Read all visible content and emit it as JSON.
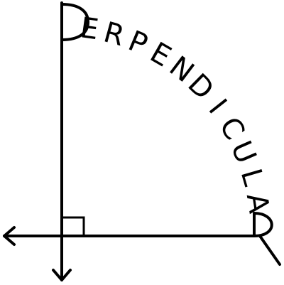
{
  "title": "Perpendicular",
  "word": {
    "first_letter": "P",
    "arc_letters": [
      "E",
      "R",
      "P",
      "E",
      "N",
      "D",
      "I",
      "C",
      "U",
      "L",
      "A"
    ],
    "last_letter": "R"
  },
  "colors": {
    "ink": "#000000",
    "background": "#ffffff"
  }
}
